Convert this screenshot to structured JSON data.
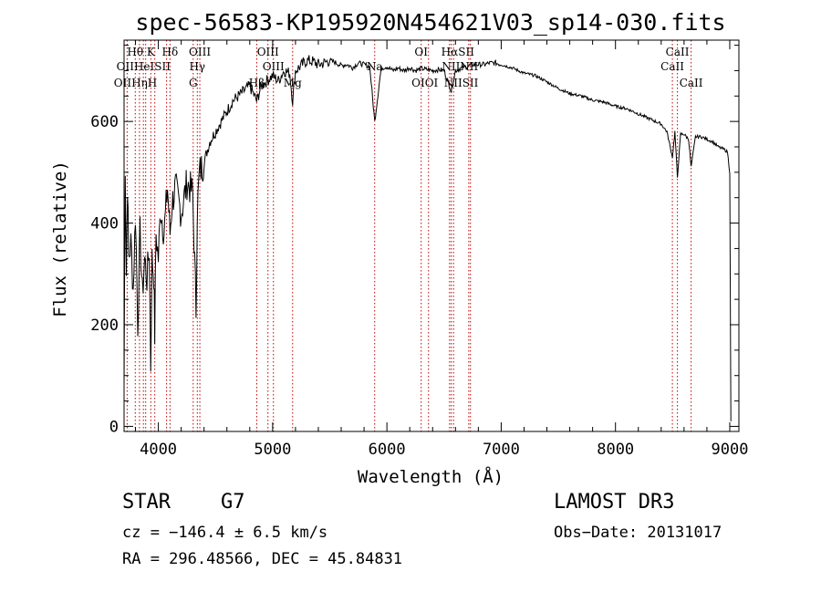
{
  "chart_data": {
    "type": "line",
    "title": "spec-56583-KP195920N454621V03_sp14-030.fits",
    "xlabel": "Wavelength (Å)",
    "ylabel": "Flux (relative)",
    "xlim": [
      3700,
      9080
    ],
    "ylim": [
      -10,
      760
    ],
    "xticks": [
      4000,
      5000,
      6000,
      7000,
      8000,
      9000
    ],
    "xtick_labels": [
      "4000",
      "5000",
      "6000",
      "7000",
      "8000",
      "9000"
    ],
    "yticks": [
      0,
      200,
      400,
      600
    ],
    "ytick_labels": [
      "0",
      "200",
      "400",
      "600"
    ],
    "grid": false,
    "series": [
      {
        "name": "flux",
        "color": "#000000",
        "x": [
          3700,
          3710,
          3720,
          3730,
          3740,
          3760,
          3780,
          3800,
          3820,
          3840,
          3860,
          3880,
          3900,
          3920,
          3933,
          3945,
          3960,
          3968,
          3980,
          4000,
          4020,
          4050,
          4080,
          4102,
          4120,
          4150,
          4200,
          4250,
          4300,
          4330,
          4340,
          4360,
          4400,
          4450,
          4500,
          4550,
          4600,
          4650,
          4700,
          4750,
          4800,
          4861,
          4900,
          4950,
          5000,
          5050,
          5100,
          5150,
          5175,
          5200,
          5250,
          5300,
          5350,
          5400,
          5450,
          5500,
          5550,
          5600,
          5650,
          5700,
          5750,
          5800,
          5850,
          5893,
          5950,
          6000,
          6050,
          6100,
          6150,
          6200,
          6250,
          6300,
          6350,
          6400,
          6450,
          6500,
          6563,
          6600,
          6650,
          6700,
          6750,
          6800,
          6850,
          6900,
          6950,
          7000,
          7100,
          7200,
          7300,
          7400,
          7500,
          7600,
          7700,
          7800,
          7900,
          8000,
          8100,
          8200,
          8300,
          8400,
          8450,
          8498,
          8520,
          8542,
          8570,
          8600,
          8640,
          8662,
          8700,
          8750,
          8800,
          8850,
          8900,
          8950,
          8980,
          9000,
          9010
        ],
        "y": [
          80,
          520,
          300,
          480,
          330,
          360,
          270,
          420,
          200,
          380,
          260,
          330,
          290,
          350,
          120,
          330,
          300,
          180,
          380,
          330,
          430,
          380,
          470,
          380,
          440,
          470,
          420,
          480,
          460,
          230,
          420,
          500,
          520,
          560,
          580,
          600,
          620,
          640,
          650,
          660,
          670,
          640,
          670,
          680,
          690,
          680,
          700,
          695,
          640,
          700,
          710,
          720,
          718,
          712,
          715,
          720,
          716,
          710,
          712,
          706,
          715,
          712,
          708,
          600,
          705,
          708,
          700,
          705,
          700,
          706,
          700,
          704,
          702,
          700,
          702,
          700,
          660,
          700,
          705,
          708,
          712,
          712,
          712,
          715,
          715,
          712,
          705,
          695,
          690,
          678,
          665,
          655,
          650,
          642,
          638,
          630,
          625,
          615,
          605,
          595,
          580,
          530,
          580,
          490,
          575,
          575,
          565,
          510,
          570,
          570,
          565,
          560,
          550,
          545,
          540,
          500,
          10
        ]
      }
    ],
    "line_marks": [
      {
        "label": "OII",
        "x": 3727
      },
      {
        "label": "Hθ",
        "x": 3798
      },
      {
        "label": "Hη",
        "x": 3835
      },
      {
        "label": "NeIII",
        "x": 3869
      },
      {
        "label": "HeI",
        "x": 3889
      },
      {
        "label": "K",
        "x": 3934
      },
      {
        "label": "H",
        "x": 3969
      },
      {
        "label": "SII",
        "x": 4072
      },
      {
        "label": "Hδ",
        "x": 4102
      },
      {
        "label": "G",
        "x": 4305
      },
      {
        "label": "Hγ",
        "x": 4341
      },
      {
        "label": "OIII",
        "x": 4363
      },
      {
        "label": "Hβ",
        "x": 4861
      },
      {
        "label": "OIII",
        "x": 4959
      },
      {
        "label": "OIII",
        "x": 5007
      },
      {
        "label": "Mg",
        "x": 5175
      },
      {
        "label": "Na",
        "x": 5893
      },
      {
        "label": "OI",
        "x": 6300
      },
      {
        "label": "OI",
        "x": 6364
      },
      {
        "label": "NII",
        "x": 6548
      },
      {
        "label": "Hα",
        "x": 6563
      },
      {
        "label": "NII",
        "x": 6583
      },
      {
        "label": "SII",
        "x": 6716
      },
      {
        "label": "SII",
        "x": 6731
      },
      {
        "label": "CaII",
        "x": 8498
      },
      {
        "label": "CaII",
        "x": 8542
      },
      {
        "label": "CaII",
        "x": 8662
      }
    ],
    "line_label_rows": [
      [
        {
          "text": "Hθ",
          "x": 3798
        },
        {
          "text": "K",
          "x": 3934
        },
        {
          "text": "Hδ",
          "x": 4102
        },
        {
          "text": "OIII",
          "x": 4363
        },
        {
          "text": "OIII",
          "x": 4959
        },
        {
          "text": "OI",
          "x": 6300
        },
        {
          "text": "HαSII",
          "x": 6620
        },
        {
          "text": "CaII",
          "x": 8542
        }
      ],
      [
        {
          "text": "OIIHeISII",
          "x": 3870
        },
        {
          "text": "Hγ",
          "x": 4341
        },
        {
          "text": "OIII",
          "x": 5007
        },
        {
          "text": "Na",
          "x": 5893
        },
        {
          "text": "NIINII",
          "x": 6640
        },
        {
          "text": "CaII",
          "x": 8498
        }
      ],
      [
        {
          "text": "OIIHηH",
          "x": 3800
        },
        {
          "text": "G",
          "x": 4305
        },
        {
          "text": "Hβ",
          "x": 4861
        },
        {
          "text": "Mg",
          "x": 5175
        },
        {
          "text": "OIOI",
          "x": 6332
        },
        {
          "text": "NIISII",
          "x": 6650
        },
        {
          "text": "CaII",
          "x": 8662
        }
      ]
    ]
  },
  "info": {
    "object_type": "STAR",
    "subclass": "G7",
    "survey": "LAMOST DR3",
    "cz": "cz = −146.4 ± 6.5 km/s",
    "obs_date": "Obs−Date: 20131017",
    "coords": "RA = 296.48566, DEC =  45.84831"
  },
  "colors": {
    "spectrum": "#000000",
    "line_marker": "#c00000",
    "axes": "#000000"
  }
}
